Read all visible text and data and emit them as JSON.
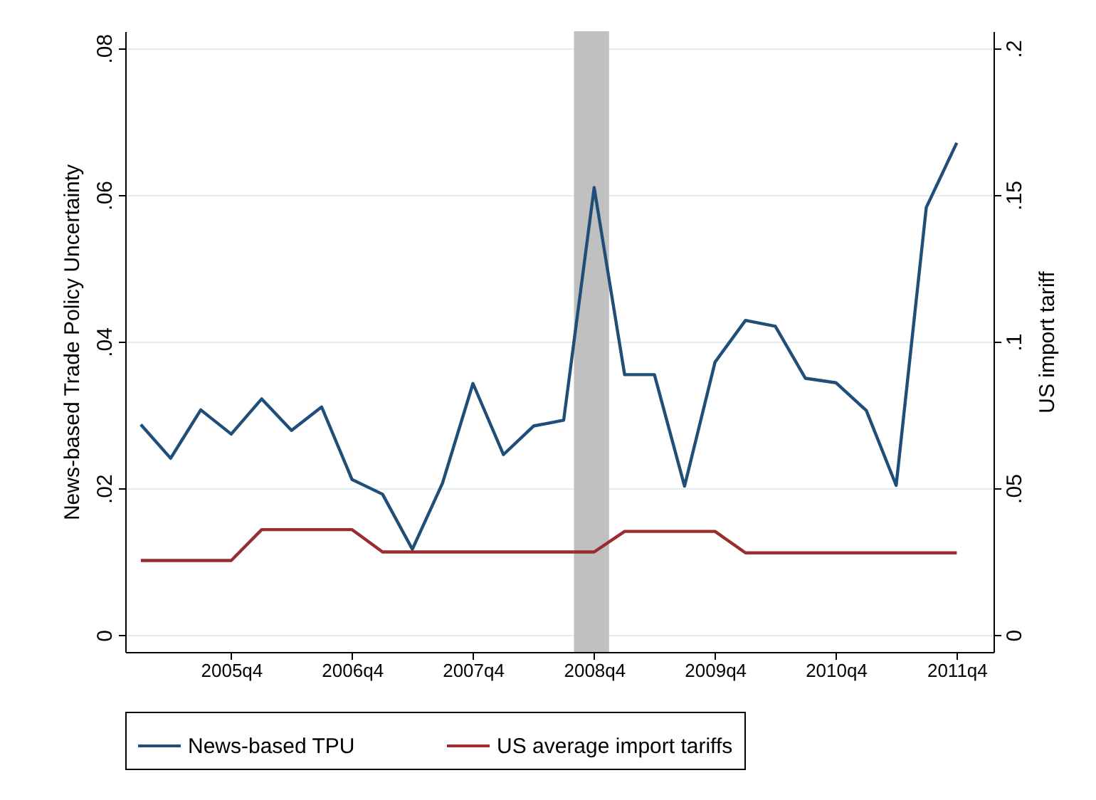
{
  "chart_data": {
    "type": "line",
    "ylabel": "News-based Trade Policy Uncertainty",
    "y2label": "US import tariff",
    "x": [
      "2005-01",
      "2005-04",
      "2005-07",
      "2005-10",
      "2006-01",
      "2006-04",
      "2006-07",
      "2006-10",
      "2007-01",
      "2007-04",
      "2007-07",
      "2007-10",
      "2008-01",
      "2008-04",
      "2008-07",
      "2008-10",
      "2009-01",
      "2009-04",
      "2009-07",
      "2009-10",
      "2010-01",
      "2010-04",
      "2010-07",
      "2010-10",
      "2011-01",
      "2011-04",
      "2011-07",
      "2011-10"
    ],
    "series": [
      {
        "name": "News-based TPU",
        "color": "#1f4e79",
        "values": [
          0.0287,
          0.0241,
          0.0307,
          0.0274,
          0.0322,
          0.0279,
          0.0311,
          0.0212,
          0.0192,
          0.0117,
          0.0207,
          0.0343,
          0.0246,
          0.0285,
          0.0293,
          0.061,
          0.0355,
          0.0355,
          0.0203,
          0.0372,
          0.0429,
          0.0421,
          0.035,
          0.0344,
          0.0306,
          0.0204,
          0.0583,
          0.0671
        ]
      },
      {
        "name": "US average import tariffs",
        "color": "#9b2d30",
        "axis": "y2",
        "values": [
          0.0254,
          0.0254,
          0.0254,
          0.0254,
          0.0359,
          0.0359,
          0.0359,
          0.0359,
          0.0283,
          0.0283,
          0.0283,
          0.0283,
          0.0283,
          0.0283,
          0.0283,
          0.0283,
          0.0353,
          0.0353,
          0.0353,
          0.0353,
          0.028,
          0.028,
          0.028,
          0.028,
          0.028,
          0.028,
          0.028,
          0.028
        ]
      }
    ],
    "xlim": [
      "2004-11-15",
      "2012-01-20"
    ],
    "xticks": [
      {
        "value": "2005-10",
        "label": "2005q4"
      },
      {
        "value": "2006-10",
        "label": "2006q4"
      },
      {
        "value": "2007-10",
        "label": "2007q4"
      },
      {
        "value": "2008-10",
        "label": "2008q4"
      },
      {
        "value": "2009-10",
        "label": "2009q4"
      },
      {
        "value": "2010-10",
        "label": "2010q4"
      },
      {
        "value": "2011-10",
        "label": "2011q4"
      }
    ],
    "ylim": [
      -0.0023,
      0.0823
    ],
    "yticks": [
      0,
      {
        "value": 0.02,
        "label": ".02"
      },
      {
        "value": 0.04,
        "label": ".04"
      },
      {
        "value": 0.06,
        "label": ".06"
      },
      {
        "value": 0.08,
        "label": ".08"
      }
    ],
    "y2lim": [
      -0.0058,
      0.2058
    ],
    "y2ticks": [
      0,
      {
        "value": 0.05,
        "label": ".05"
      },
      {
        "value": 0.1,
        "label": ".1"
      },
      {
        "value": 0.15,
        "label": ".15"
      },
      {
        "value": 0.2,
        "label": ".2"
      }
    ],
    "bands": [
      {
        "axis": "x",
        "from": "2008-08-01",
        "to": "2008-11-15",
        "color": "#c0c0c0"
      }
    ],
    "grid": "y",
    "legend": "bottom"
  }
}
